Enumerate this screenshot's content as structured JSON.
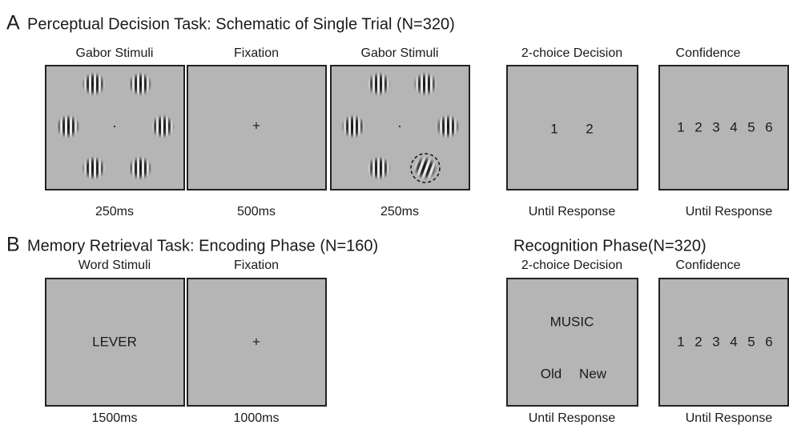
{
  "panel_a": {
    "letter": "A",
    "title": "Perceptual Decision Task: Schematic of Single Trial (N=320)",
    "screens": [
      {
        "label": "Gabor Stimuli",
        "duration": "250ms"
      },
      {
        "label": "Fixation",
        "content": "+",
        "duration": "500ms"
      },
      {
        "label": "Gabor Stimuli",
        "duration": "250ms"
      },
      {
        "label": "2-choice Decision",
        "options": [
          "1",
          "2"
        ],
        "duration": "Until Response"
      },
      {
        "label": "Confidence",
        "options": [
          "1",
          "2",
          "3",
          "4",
          "5",
          "6"
        ],
        "duration": "Until Response"
      }
    ]
  },
  "panel_b": {
    "letter": "B",
    "title": "Memory Retrieval Task: Encoding Phase (N=160)",
    "encoding_screens": [
      {
        "label": "Word Stimuli",
        "content": "LEVER",
        "duration": "1500ms"
      },
      {
        "label": "Fixation",
        "content": "+",
        "duration": "1000ms"
      }
    ],
    "recognition_title": "Recognition Phase(N=320)",
    "recognition_screens": [
      {
        "label": "2-choice Decision",
        "word": "MUSIC",
        "options": [
          "Old",
          "New"
        ],
        "duration": "Until Response"
      },
      {
        "label": "Confidence",
        "options": [
          "1",
          "2",
          "3",
          "4",
          "5",
          "6"
        ],
        "duration": "Until Response"
      }
    ]
  }
}
